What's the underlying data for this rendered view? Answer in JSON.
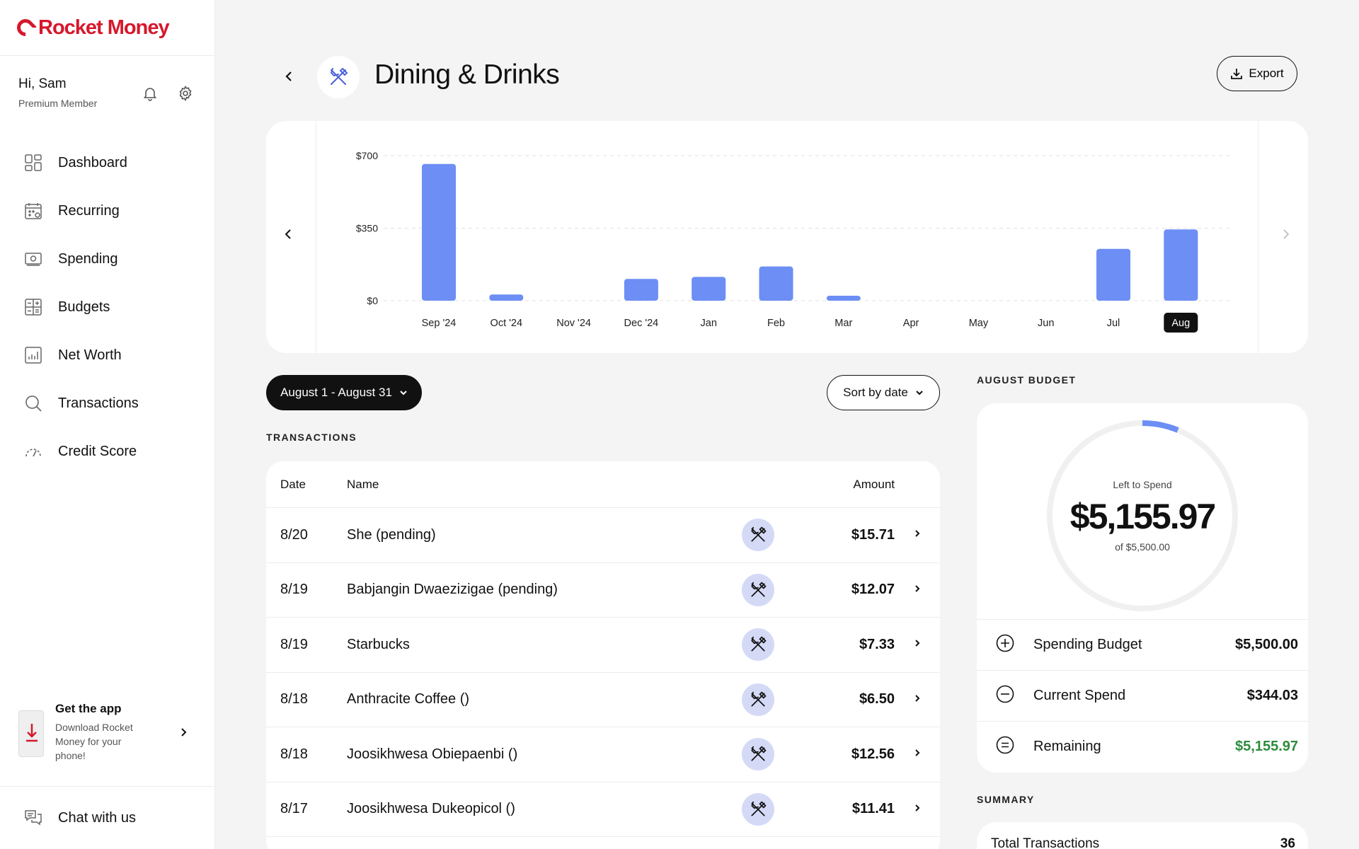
{
  "app": {
    "brand": "Rocket Money",
    "brand_color": "#d6182c"
  },
  "user": {
    "greeting": "Hi, Sam",
    "membership": "Premium Member"
  },
  "nav": [
    {
      "label": "Dashboard",
      "icon": "dashboard-icon"
    },
    {
      "label": "Recurring",
      "icon": "calendar-icon"
    },
    {
      "label": "Spending",
      "icon": "money-icon"
    },
    {
      "label": "Budgets",
      "icon": "budget-icon"
    },
    {
      "label": "Net Worth",
      "icon": "net-worth-icon"
    },
    {
      "label": "Transactions",
      "icon": "search-icon"
    },
    {
      "label": "Credit Score",
      "icon": "gauge-icon"
    }
  ],
  "promo": {
    "title": "Get the app",
    "subtitle": "Download Rocket Money for your phone!"
  },
  "chat": {
    "label": "Chat with us"
  },
  "header": {
    "title": "Dining & Drinks",
    "export_label": "Export"
  },
  "chart_data": {
    "type": "bar",
    "categories": [
      "Sep '24",
      "Oct '24",
      "Nov '24",
      "Dec '24",
      "Jan",
      "Feb",
      "Mar",
      "Apr",
      "May",
      "Jun",
      "Jul",
      "Aug"
    ],
    "values": [
      660,
      30,
      0,
      105,
      115,
      165,
      22,
      0,
      0,
      0,
      250,
      344
    ],
    "yticks": [
      "$700",
      "$350",
      "$0"
    ],
    "ylim": [
      0,
      700
    ],
    "selected": "Aug",
    "bar_color": "#6c8ef5"
  },
  "filters": {
    "date_range": "August 1 - August 31",
    "sort": "Sort by date"
  },
  "transactions": {
    "section_label": "TRANSACTIONS",
    "columns": {
      "date": "Date",
      "name": "Name",
      "amount": "Amount"
    },
    "rows": [
      {
        "date": "8/20",
        "name": "She (pending)",
        "amount": "$15.71"
      },
      {
        "date": "8/19",
        "name": "Babjangin Dwaezizigae (pending)",
        "amount": "$12.07"
      },
      {
        "date": "8/19",
        "name": "Starbucks",
        "amount": "$7.33"
      },
      {
        "date": "8/18",
        "name": "Anthracite Coffee ()",
        "amount": "$6.50"
      },
      {
        "date": "8/18",
        "name": "Joosikhwesa Obiepaenbi ()",
        "amount": "$12.56"
      },
      {
        "date": "8/17",
        "name": "Joosikhwesa Dukeopicol ()",
        "amount": "$11.41"
      }
    ]
  },
  "budget": {
    "section_label": "AUGUST BUDGET",
    "caption": "Left to Spend",
    "left_amount": "$5,155.97",
    "of_total": "of $5,500.00",
    "spent_fraction": 0.0625,
    "rows": [
      {
        "label": "Spending Budget",
        "value": "$5,500.00",
        "icon": "plus-circle-icon"
      },
      {
        "label": "Current Spend",
        "value": "$344.03",
        "icon": "minus-circle-icon"
      },
      {
        "label": "Remaining",
        "value": "$5,155.97",
        "icon": "equals-circle-icon"
      }
    ],
    "remaining_color": "#2e8b3c"
  },
  "summary": {
    "section_label": "SUMMARY",
    "total_label": "Total Transactions",
    "total_value": "36"
  }
}
